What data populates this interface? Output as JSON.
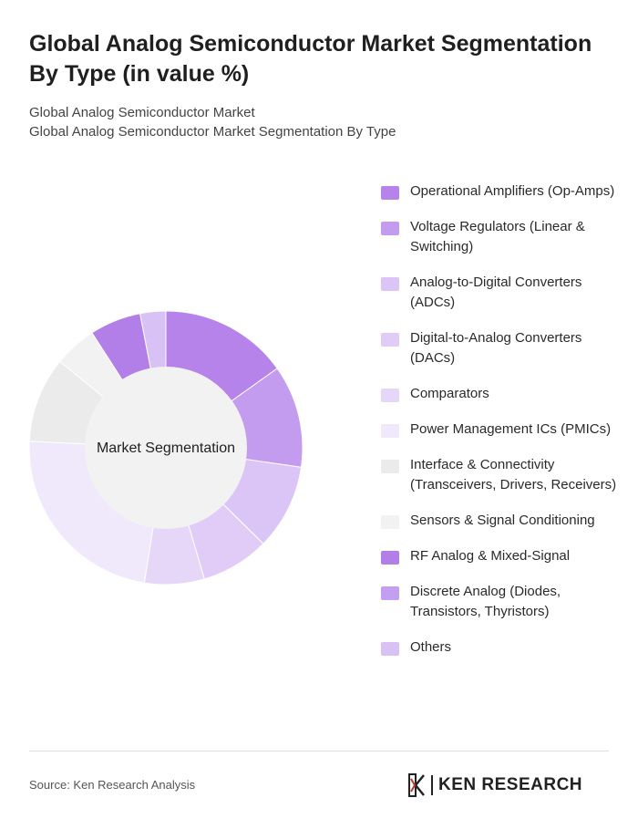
{
  "header": {
    "title": "Global Analog Semiconductor Market Segmentation By Type (in value %)",
    "subtitle_line1": "Global Analog Semiconductor Market",
    "subtitle_line2": "Global Analog Semiconductor Market Segmentation By Type"
  },
  "chart_data": {
    "type": "pie",
    "variant": "donut",
    "center_label": "Market Segmentation",
    "categories": [
      "Operational Amplifiers (Op-Amps)",
      "Voltage Regulators (Linear & Switching)",
      "Analog-to-Digital Converters (ADCs)",
      "Digital-to-Analog Converters (DACs)",
      "Comparators",
      "Power Management ICs (PMICs)",
      "Interface & Connectivity (Transceivers, Drivers, Receivers)",
      "Sensors & Signal Conditioning",
      "RF Analog & Mixed-Signal",
      "Discrete Analog (Diodes, Transistors, Thyristors)",
      "Others"
    ],
    "values": [
      15,
      12,
      10,
      8,
      7,
      23,
      10,
      5,
      6,
      0,
      3
    ],
    "colors": [
      "#b583ea",
      "#c39cef",
      "#dbc4f6",
      "#e0ccf7",
      "#e6d7f8",
      "#f0e9fb",
      "#ebebeb",
      "#f2f2f2",
      "#b27ee8",
      "#c3a0ef",
      "#d8c2f5"
    ],
    "legend_position": "right"
  },
  "footer": {
    "source": "Source: Ken Research Analysis",
    "logo_text": "KEN RESEARCH"
  }
}
